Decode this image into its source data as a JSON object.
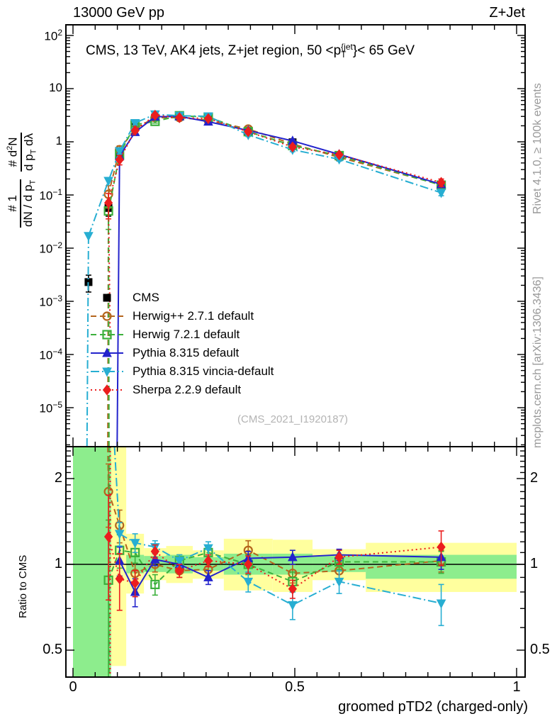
{
  "header": {
    "left_title": "13000 GeV pp",
    "right_title": "Z+Jet"
  },
  "main_panel": {
    "annotation": {
      "prefix": "CMS, 13 TeV, AK4 jets, Z+jet region, 50 <p",
      "sup": "{jet",
      "sub": "T",
      "suffix": "}< 65 GeV"
    },
    "watermark": "(CMS_2021_I1920187)",
    "y_label": {
      "f1_num": "# 1",
      "f1_den_main": "dN / d p",
      "f1_den_sub": "T",
      "f2_num_main": "# d",
      "f2_num_sup": "2",
      "f2_num_tail": "N",
      "f2_den_main": "d p",
      "f2_den_sub": "T",
      "f2_den_tail": " dλ"
    },
    "y_tick_exponents": [
      2,
      1,
      0,
      -1,
      -2,
      -3,
      -4,
      -5
    ]
  },
  "ratio_panel": {
    "y_label": "Ratio to CMS",
    "y_ticks": [
      {
        "v": 2,
        "label": "2"
      },
      {
        "v": 1,
        "label": "1"
      },
      {
        "v": 0.5,
        "label": "0.5"
      }
    ]
  },
  "x_axis": {
    "label": "groomed pTD2 (charged-only)",
    "ticks": [
      {
        "v": 0,
        "label": "0"
      },
      {
        "v": 0.5,
        "label": "0.5"
      },
      {
        "v": 1,
        "label": "1"
      }
    ]
  },
  "side_notes": {
    "top": "Rivet 4.1.0, ≥ 100k events",
    "bottom": "mcplots.cern.ch [arXiv:1306.3436]"
  },
  "colors": {
    "cms": "#000000",
    "herwigpp": "#b5651d",
    "herwig7": "#3cb03c",
    "pythia": "#2323cc",
    "vincia": "#27aed2",
    "sherpa": "#eb1e1e",
    "band_yellow": "#ffff9e",
    "band_green": "#8ded8d"
  },
  "legend": [
    {
      "id": "cms",
      "label": "CMS",
      "marker": "square",
      "line": "none"
    },
    {
      "id": "herwigpp",
      "label": "Herwig++ 2.7.1 default",
      "marker": "circle-open",
      "line": "dash"
    },
    {
      "id": "herwig7",
      "label": "Herwig 7.2.1 default",
      "marker": "square-open",
      "line": "dash"
    },
    {
      "id": "pythia",
      "label": "Pythia 8.315 default",
      "marker": "tri-up",
      "line": "solid"
    },
    {
      "id": "vincia",
      "label": "Pythia 8.315 vincia-default",
      "marker": "tri-down",
      "line": "dashdot"
    },
    {
      "id": "sherpa",
      "label": "Sherpa 2.2.9 default",
      "marker": "diamond",
      "line": "dot"
    }
  ],
  "chart_data": {
    "type": "line",
    "title": "CMS, 13 TeV, AK4 jets, Z+jet region, 50 < pT^{jet} < 65 GeV",
    "xlabel": "groomed pTD2 (charged-only)",
    "ylabel_main": "# 1/(dN/dpT) d^2N/(dpT dλ)",
    "ylabel_ratio": "Ratio to CMS",
    "x_range": [
      -0.016,
      1.019
    ],
    "main_y_range_log10": [
      -5.73,
      2.2
    ],
    "ratio_y_range": [
      0.4,
      2.59
    ],
    "bin_edges": [
      0,
      0.07,
      0.09,
      0.12,
      0.16,
      0.21,
      0.27,
      0.34,
      0.45,
      0.54,
      0.66,
      1.0
    ],
    "x": [
      0.035,
      0.08,
      0.105,
      0.14,
      0.185,
      0.24,
      0.305,
      0.395,
      0.495,
      0.6,
      0.83
    ],
    "series": [
      {
        "id": "cms",
        "name": "CMS",
        "marker": "square",
        "line": "none",
        "main": [
          0.0023,
          0.057,
          0.52,
          1.9,
          2.85,
          3.0,
          2.65,
          1.55,
          0.98,
          0.54,
          0.15
        ],
        "main_rel_err": [
          0.35,
          0.3,
          0.12,
          0.05,
          0.04,
          0.04,
          0.04,
          0.04,
          0.04,
          0.05,
          0.07
        ],
        "ratio": null
      },
      {
        "id": "herwigpp",
        "name": "Herwig++ 2.7.1 default",
        "marker": "circle-open",
        "line": "dash",
        "main": [
          null,
          0.103,
          0.71,
          1.77,
          2.85,
          2.85,
          2.54,
          1.74,
          0.91,
          0.51,
          0.155
        ],
        "ratio": [
          null,
          1.8,
          1.37,
          0.93,
          1.0,
          0.95,
          0.96,
          1.12,
          0.93,
          0.95,
          1.03
        ],
        "ratio_err": [
          0,
          0.45,
          0.18,
          0.08,
          0.06,
          0.05,
          0.06,
          0.09,
          0.07,
          0.06,
          0.09
        ],
        "segments_main": [
          [
            [
              0.0785,
              1e-07
            ],
            [
              0.08,
              0.103
            ]
          ]
        ],
        "segments_ratio": [
          [
            [
              0.0785,
              9
            ],
            [
              0.08,
              1.8
            ]
          ]
        ]
      },
      {
        "id": "herwig7",
        "name": "Herwig 7.2.1 default",
        "marker": "square-open",
        "line": "dash",
        "main": [
          null,
          0.05,
          0.58,
          2.09,
          2.42,
          3.09,
          2.92,
          1.55,
          0.85,
          0.55,
          0.153
        ],
        "ratio": [
          null,
          0.88,
          1.12,
          1.1,
          0.85,
          1.03,
          1.1,
          1.0,
          0.87,
          1.02,
          1.02
        ],
        "ratio_err": [
          0,
          0.55,
          0.15,
          0.09,
          0.07,
          0.05,
          0.06,
          0.08,
          0.07,
          0.06,
          0.09
        ],
        "segments_main": [
          [
            [
              0.0812,
              1e-07
            ],
            [
              0.08,
              0.05
            ]
          ]
        ],
        "segments_ratio": [
          [
            [
              0.0812,
              9
            ],
            [
              0.0812,
              0.01
            ]
          ]
        ]
      },
      {
        "id": "pythia",
        "name": "Pythia 8.315 default",
        "marker": "tri-up",
        "line": "solid",
        "main": [
          null,
          null,
          0.54,
          1.52,
          2.96,
          3.0,
          2.39,
          1.63,
          1.04,
          0.58,
          0.159
        ],
        "ratio": [
          null,
          null,
          1.03,
          0.8,
          1.04,
          1.0,
          0.9,
          1.05,
          1.06,
          1.08,
          1.06
        ],
        "ratio_err": [
          0,
          0,
          0.12,
          0.09,
          0.05,
          0.04,
          0.05,
          0.06,
          0.06,
          0.05,
          0.1
        ],
        "segments_main": [
          [
            [
              0.0995,
              1e-07
            ],
            [
              0.105,
              0.54
            ]
          ]
        ]
      },
      {
        "id": "vincia",
        "name": "Pythia 8.315 vincia-default",
        "marker": "tri-down",
        "line": "dashdot",
        "main": [
          0.017,
          0.185,
          0.67,
          2.26,
          3.28,
          3.09,
          3.02,
          1.35,
          0.71,
          0.47,
          0.11
        ],
        "ratio": [
          null,
          null,
          1.28,
          1.19,
          1.15,
          1.03,
          1.14,
          0.87,
          0.72,
          0.87,
          0.73
        ],
        "ratio_err": [
          0,
          0,
          0.12,
          0.09,
          0.06,
          0.05,
          0.06,
          0.07,
          0.08,
          0.08,
          0.12
        ],
        "segments_main": [
          [
            [
              0.0315,
              1e-07
            ],
            [
              0.035,
              0.017
            ]
          ]
        ],
        "segments_ratio": [
          [
            [
              0.033,
              9
            ],
            [
              0.033,
              2.75
            ]
          ],
          [
            [
              0.0935,
              9
            ],
            [
              0.105,
              1.28
            ]
          ]
        ]
      },
      {
        "id": "sherpa",
        "name": "Sherpa 2.2.9 default",
        "marker": "diamond",
        "line": "dot",
        "main": [
          null,
          0.071,
          0.46,
          1.63,
          3.16,
          2.85,
          2.73,
          1.55,
          0.8,
          0.57,
          0.172
        ],
        "ratio": [
          null,
          1.25,
          0.89,
          0.86,
          1.11,
          0.95,
          1.03,
          1.0,
          0.82,
          1.06,
          1.15
        ],
        "ratio_err": [
          0,
          0.5,
          0.2,
          0.09,
          0.06,
          0.05,
          0.05,
          0.07,
          0.06,
          0.06,
          0.16
        ],
        "segments_main": [
          [
            [
              0.0838,
              0.00022
            ],
            [
              0.08,
              0.071
            ]
          ]
        ],
        "segments_ratio": [
          [
            [
              0.0838,
              9
            ],
            [
              0.0838,
              0.01
            ]
          ]
        ]
      }
    ],
    "ratio_bands": {
      "yellow": [
        [
          0.086,
          0.12,
          0.44,
          3.3
        ],
        [
          0.12,
          0.16,
          0.79,
          1.28
        ],
        [
          0.16,
          0.21,
          0.88,
          1.14
        ],
        [
          0.21,
          0.27,
          0.86,
          1.16
        ],
        [
          0.27,
          0.34,
          0.89,
          1.12
        ],
        [
          0.34,
          0.45,
          0.81,
          1.23
        ],
        [
          0.45,
          0.54,
          0.8,
          1.22
        ],
        [
          0.54,
          0.66,
          0.88,
          1.13
        ],
        [
          0.66,
          1.0,
          0.8,
          1.19
        ]
      ],
      "green": [
        [
          0.0,
          0.086,
          0.4,
          3.3
        ],
        [
          0.12,
          0.16,
          0.93,
          1.08
        ],
        [
          0.16,
          0.21,
          0.94,
          1.07
        ],
        [
          0.21,
          0.27,
          0.93,
          1.08
        ],
        [
          0.27,
          0.34,
          0.95,
          1.06
        ],
        [
          0.34,
          0.45,
          0.92,
          1.09
        ],
        [
          0.45,
          0.54,
          0.92,
          1.09
        ],
        [
          0.54,
          0.66,
          0.94,
          1.07
        ],
        [
          0.66,
          1.0,
          0.89,
          1.08
        ]
      ]
    },
    "ratio_unity_line": 1.0
  }
}
